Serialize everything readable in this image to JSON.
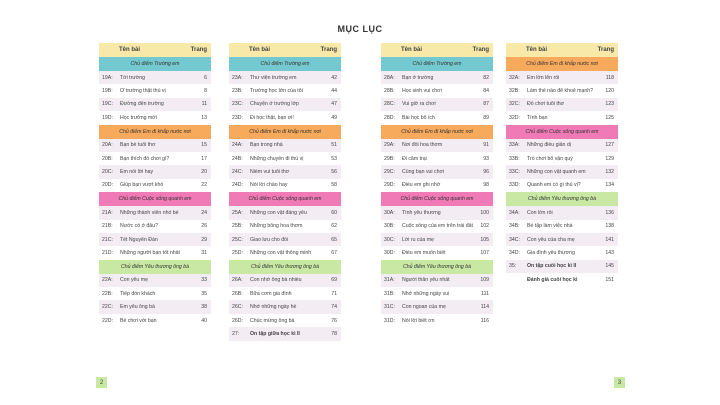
{
  "title": "MỤC LỤC",
  "header": {
    "name": "Tên bài",
    "page": "Trang"
  },
  "columns": [
    {
      "sections": [
        {
          "band": "Chủ điểm Trường em",
          "color": "teal",
          "rows": [
            [
              "19A:",
              "Tới trường",
              "6"
            ],
            [
              "19B:",
              "Ở trường thật thú vị",
              "8"
            ],
            [
              "19C:",
              "Đường đến trường",
              "11"
            ],
            [
              "19D:",
              "Học trường mới",
              "13"
            ]
          ]
        },
        {
          "band": "Chủ điểm Em đi khắp nước nơi",
          "color": "orange",
          "rows": [
            [
              "20A:",
              "Bạn bè tuổi thơ",
              "15"
            ],
            [
              "20B:",
              "Bạn thích đồ chơi gì?",
              "17"
            ],
            [
              "20C:",
              "Em nói lời hay",
              "20"
            ],
            [
              "20D:",
              "Giúp bạn vượt khó",
              "22"
            ]
          ]
        },
        {
          "band": "Chủ điểm Cuộc sống quanh em",
          "color": "pink",
          "rows": [
            [
              "21A:",
              "Những thành viên nhỏ bé",
              "24"
            ],
            [
              "21B:",
              "Nước có ở đâu?",
              "26"
            ],
            [
              "21C:",
              "Tết Nguyên Đán",
              "29"
            ],
            [
              "21D:",
              "Những người bạn tốt nhất",
              "31"
            ]
          ]
        },
        {
          "band": "Chủ điểm Yêu thương ông bà",
          "color": "green",
          "rows": [
            [
              "22A:",
              "Con yêu mẹ",
              "33"
            ],
            [
              "22B:",
              "Tiếp đón khách",
              "35"
            ],
            [
              "22C:",
              "Em yêu ông bà",
              "38"
            ],
            [
              "22D:",
              "Bé chơi với bạn",
              "40"
            ]
          ]
        }
      ]
    },
    {
      "sections": [
        {
          "band": "Chủ điểm Trường em",
          "color": "teal",
          "rows": [
            [
              "23A:",
              "Thư viện trường em",
              "42"
            ],
            [
              "23B:",
              "Trường học lớn của tôi",
              "44"
            ],
            [
              "23C:",
              "Chuyện ở trường lớp",
              "47"
            ],
            [
              "23D:",
              "Đi học thật, bạn ơi!",
              "49"
            ]
          ]
        },
        {
          "band": "Chủ điểm Em đi khắp nước nơi",
          "color": "orange",
          "rows": [
            [
              "24A:",
              "Bạn trong nhà",
              "51"
            ],
            [
              "24B:",
              "Những chuyến đi thú vị",
              "53"
            ],
            [
              "24C:",
              "Niềm vui tuổi thơ",
              "56"
            ],
            [
              "24D:",
              "Nói lời chào hay",
              "58"
            ]
          ]
        },
        {
          "band": "Chủ điểm Cuộc sống quanh em",
          "color": "pink",
          "rows": [
            [
              "25A:",
              "Những con vật đáng yêu",
              "60"
            ],
            [
              "25B:",
              "Những bông hoa thơm",
              "62"
            ],
            [
              "25C:",
              "Giao lưu cho đồi",
              "65"
            ],
            [
              "25D:",
              "Những con vật thông minh",
              "67"
            ]
          ]
        },
        {
          "band": "Chủ điểm Yêu thương ông bà",
          "color": "green",
          "rows": [
            [
              "26A:",
              "Con nhớ ông bà nhiều",
              "69"
            ],
            [
              "26B:",
              "Bữa cơm gia đình",
              "71"
            ],
            [
              "26C:",
              "Nhớ những ngày hè",
              "74"
            ],
            [
              "26D:",
              "Chúc mừng ông bà",
              "76"
            ],
            [
              "27:",
              "Ôn tập giữa học kì II",
              "78"
            ]
          ]
        }
      ]
    },
    {
      "sections": [
        {
          "band": "Chủ điểm Trường em",
          "color": "teal",
          "rows": [
            [
              "28A:",
              "Bạn ở trường",
              "82"
            ],
            [
              "28B:",
              "Học sinh vui chơi",
              "84"
            ],
            [
              "28C:",
              "Vui giờ ra chơi",
              "87"
            ],
            [
              "28D:",
              "Bài học bổ ích",
              "89"
            ]
          ]
        },
        {
          "band": "Chủ điểm Em đi khắp nước nơi",
          "color": "orange",
          "rows": [
            [
              "29A:",
              "Nơi đồi hoa thơm",
              "91"
            ],
            [
              "29B:",
              "Đi cắm trại",
              "93"
            ],
            [
              "29C:",
              "Cùng bạn vui chơi",
              "96"
            ],
            [
              "29D:",
              "Điều em ghi nhớ",
              "98"
            ]
          ]
        },
        {
          "band": "Chủ điểm Cuộc sống quanh em",
          "color": "pink",
          "rows": [
            [
              "30A:",
              "Tình yêu thương",
              "100"
            ],
            [
              "30B:",
              "Cuộc sống của em trên trái đất",
              "102"
            ],
            [
              "30C:",
              "Lời ru của mẹ",
              "105"
            ],
            [
              "30D:",
              "Điều em muốn biết",
              "107"
            ]
          ]
        },
        {
          "band": "Chủ điểm Yêu thương ông bà",
          "color": "green",
          "rows": [
            [
              "31A:",
              "Người thân yêu nhất",
              "109"
            ],
            [
              "31B:",
              "Nhớ những ngày vui",
              "111"
            ],
            [
              "31C:",
              "Con ngoan của mẹ",
              "114"
            ],
            [
              "31D:",
              "Nói lời biết ơn",
              "116"
            ]
          ]
        }
      ]
    },
    {
      "sections": [
        {
          "band": "Chủ điểm Em đi khắp nước nơi",
          "color": "orange",
          "rows": [
            [
              "32A:",
              "Em lớn lên rồi",
              "118"
            ],
            [
              "32B:",
              "Làm thế nào để khoẻ mạnh?",
              "120"
            ],
            [
              "32C:",
              "Đồ chơi tuổi thơ",
              "123"
            ],
            [
              "32D:",
              "Tình bạn",
              "125"
            ]
          ]
        },
        {
          "band": "Chủ điểm Cuộc sống quanh em",
          "color": "pink",
          "rows": [
            [
              "33A:",
              "Những điều giản dị",
              "127"
            ],
            [
              "33B:",
              "Trò chơi bổ vận quý",
              "129"
            ],
            [
              "33C:",
              "Những con vật quanh em",
              "132"
            ],
            [
              "33D:",
              "Quanh em có gì thú vị?",
              "134"
            ]
          ]
        },
        {
          "band": "Chủ điểm Yêu thương ông bà",
          "color": "green",
          "rows": [
            [
              "34A:",
              "Con lớn rồi",
              "136"
            ],
            [
              "34B:",
              "Bé tập làm việc nhà",
              "138"
            ],
            [
              "34C:",
              "Con yêu của cha mẹ",
              "141"
            ],
            [
              "34D:",
              "Gia đình yêu thương",
              "143"
            ],
            [
              "35:",
              "Ôn tập cuối học kì II",
              "145"
            ],
            [
              "",
              "Đánh giá cuối học kì",
              "151"
            ]
          ]
        }
      ]
    }
  ],
  "page_numbers": {
    "left": "2",
    "right": "3"
  },
  "colors": {
    "teal": "#74c8cf",
    "orange": "#f7a95c",
    "pink": "#f07ab6",
    "green": "#c9e8a4",
    "header": "#f8e9a8"
  }
}
